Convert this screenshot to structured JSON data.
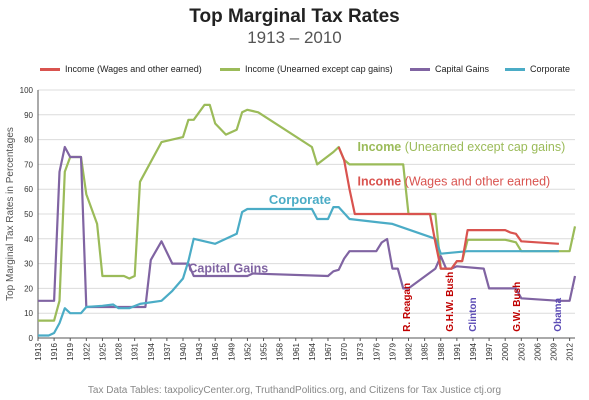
{
  "header": {
    "title": "Top Marginal Tax Rates",
    "subtitle": "1913 – 2010"
  },
  "footer": {
    "source": "Tax Data Tables: taxpolicyCenter.org, TruthandPolitics.org, and Citizens for Tax Justice ctj.org"
  },
  "chart_data": {
    "type": "line",
    "ylabel": "Top Marginal Tax Rates in Percentages",
    "ylim": [
      0,
      100
    ],
    "yticks": [
      0,
      10,
      20,
      30,
      40,
      50,
      60,
      70,
      80,
      90,
      100
    ],
    "xlim": [
      1913,
      2013
    ],
    "xticks": [
      1913,
      1916,
      1919,
      1922,
      1925,
      1928,
      1931,
      1934,
      1937,
      1940,
      1943,
      1946,
      1949,
      1952,
      1955,
      1958,
      1961,
      1964,
      1967,
      1970,
      1973,
      1976,
      1979,
      1982,
      1985,
      1988,
      1991,
      1994,
      1997,
      2000,
      2003,
      2006,
      2009,
      2012
    ],
    "grid": true,
    "legend_position": "top",
    "series": [
      {
        "name": "Income (Wages and other earned)",
        "color": "#d9534f",
        "label": "Income (Wages and other earned)",
        "x": [
          1969,
          1970,
          1971,
          1972,
          1981,
          1982,
          1986,
          1987,
          1988,
          1990,
          1991,
          1992,
          1993,
          2000,
          2001,
          2002,
          2003,
          2010
        ],
        "y": [
          77,
          71.8,
          60,
          50,
          50,
          50,
          50,
          38.5,
          28,
          28,
          31,
          31,
          43.5,
          43.5,
          42.5,
          42,
          39,
          38
        ]
      },
      {
        "name": "Income (Unearned except cap gains)",
        "color": "#9bbb59",
        "label": "Income (Unearned except cap gains)",
        "x": [
          1913,
          1916,
          1917,
          1918,
          1919,
          1921,
          1922,
          1924,
          1925,
          1929,
          1930,
          1931,
          1932,
          1936,
          1940,
          1941,
          1942,
          1944,
          1945,
          1946,
          1948,
          1950,
          1951,
          1952,
          1954,
          1964,
          1965,
          1968,
          1969,
          1970,
          1971,
          1981,
          1982,
          1987,
          1988,
          1990,
          1991,
          1992,
          1993,
          2000,
          2001,
          2002,
          2003,
          2012,
          2013
        ],
        "y": [
          7,
          7,
          15,
          67,
          73,
          73,
          58,
          46,
          25,
          25,
          24,
          25,
          63,
          79,
          81,
          88,
          88,
          94,
          94,
          86.5,
          82,
          84,
          91,
          92,
          91,
          77,
          70,
          75,
          77,
          71.8,
          70,
          70,
          50,
          50,
          28,
          28,
          31,
          31,
          39.6,
          39.6,
          39.1,
          38.6,
          35,
          35,
          45
        ]
      },
      {
        "name": "Capital Gains",
        "color": "#8064a2",
        "label": "Capital Gains",
        "x": [
          1913,
          1916,
          1917,
          1918,
          1919,
          1921,
          1922,
          1933,
          1934,
          1936,
          1938,
          1940,
          1941,
          1942,
          1952,
          1953,
          1967,
          1968,
          1969,
          1970,
          1971,
          1976,
          1977,
          1978,
          1979,
          1980,
          1981,
          1982,
          1987,
          1988,
          1989,
          1990,
          1991,
          1996,
          1997,
          2002,
          2003,
          2010,
          2011,
          2012,
          2013
        ],
        "y": [
          15,
          15,
          67,
          77,
          73,
          73,
          12.5,
          12.5,
          31.5,
          39,
          30,
          30,
          30,
          25,
          25,
          26,
          25,
          26.9,
          27.5,
          32,
          35,
          35,
          38.5,
          39.9,
          28,
          28,
          20,
          20,
          28,
          33,
          28,
          28,
          28.9,
          28,
          20,
          20,
          16,
          15,
          15,
          15,
          25
        ]
      },
      {
        "name": "Corporate",
        "color": "#4bacc6",
        "label": "Corporate",
        "x": [
          1913,
          1915,
          1916,
          1917,
          1918,
          1919,
          1921,
          1922,
          1925,
          1927,
          1928,
          1930,
          1932,
          1936,
          1938,
          1940,
          1941,
          1942,
          1946,
          1950,
          1951,
          1952,
          1964,
          1965,
          1967,
          1968,
          1969,
          1971,
          1979,
          1987,
          1988,
          1993,
          2010
        ],
        "y": [
          1,
          1,
          2,
          6,
          12,
          10,
          10,
          12.5,
          13,
          13.5,
          12,
          12,
          13.75,
          15,
          19,
          24,
          31,
          40,
          38,
          42,
          50.75,
          52,
          52,
          48,
          48,
          52.8,
          52.8,
          48,
          46,
          40,
          34,
          35,
          35
        ]
      }
    ],
    "annotations": [
      "R. Reagan",
      "G.H.W. Bush",
      "Clinton",
      "G.W. Bush",
      "Obama"
    ]
  }
}
